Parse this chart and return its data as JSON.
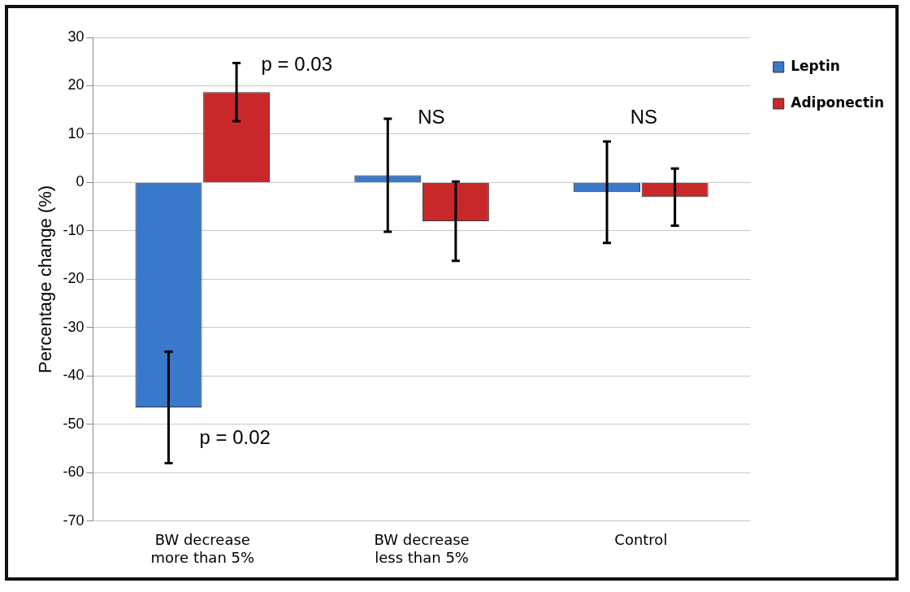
{
  "chart_data": {
    "type": "bar",
    "ylabel": "Percentage change (%)",
    "categories": [
      "BW decrease more than 5%",
      "BW decrease less than 5%",
      "Control"
    ],
    "series": [
      {
        "name": "Leptin",
        "color": "#3a78c9",
        "values": [
          -46.5,
          1.5,
          -2
        ],
        "errors": [
          11.5,
          11.7,
          10.5
        ]
      },
      {
        "name": "Adiponectin",
        "color": "#c8282a",
        "values": [
          18.7,
          -8,
          -3
        ],
        "errors": [
          6,
          8.2,
          5.9
        ]
      }
    ],
    "ylim": [
      -70,
      30
    ],
    "yticks": [
      -70,
      -60,
      -50,
      -40,
      -30,
      -20,
      -10,
      0,
      10,
      20,
      30
    ],
    "grid": "y",
    "legend": "top right",
    "annotations": [
      "p = 0.03",
      "p = 0.02",
      "NS",
      "NS"
    ]
  }
}
